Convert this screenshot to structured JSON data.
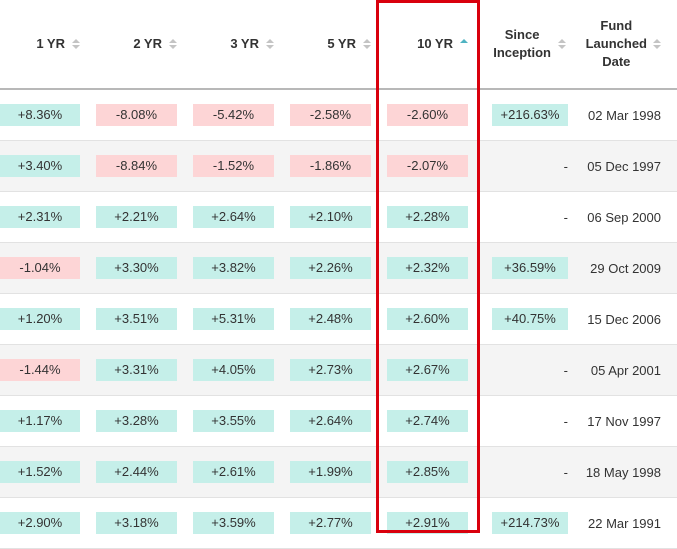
{
  "headers": [
    {
      "label": "1 YR",
      "sort": "none"
    },
    {
      "label": "2 YR",
      "sort": "none"
    },
    {
      "label": "3 YR",
      "sort": "none"
    },
    {
      "label": "5 YR",
      "sort": "none"
    },
    {
      "label": "10 YR",
      "sort": "ascending"
    },
    {
      "label_line1": "Since",
      "label_line2": "Inception",
      "sort": "none"
    },
    {
      "label_line1": "Fund",
      "label_line2": "Launched",
      "label_line3": "Date",
      "sort": "none"
    }
  ],
  "colors": {
    "positive_bg": "#c5efe9",
    "negative_bg": "#fdd5d6",
    "highlight_border": "#d9000d",
    "sort_active": "#4fb3c2"
  },
  "rows": [
    {
      "yr1": "+8.36%",
      "yr2": "-8.08%",
      "yr3": "-5.42%",
      "yr5": "-2.58%",
      "yr10": "-2.60%",
      "since": "+216.63%",
      "date": "02 Mar 1998"
    },
    {
      "yr1": "+3.40%",
      "yr2": "-8.84%",
      "yr3": "-1.52%",
      "yr5": "-1.86%",
      "yr10": "-2.07%",
      "since": "-",
      "date": "05 Dec 1997"
    },
    {
      "yr1": "+2.31%",
      "yr2": "+2.21%",
      "yr3": "+2.64%",
      "yr5": "+2.10%",
      "yr10": "+2.28%",
      "since": "-",
      "date": "06 Sep 2000"
    },
    {
      "yr1": "-1.04%",
      "yr2": "+3.30%",
      "yr3": "+3.82%",
      "yr5": "+2.26%",
      "yr10": "+2.32%",
      "since": "+36.59%",
      "date": "29 Oct 2009"
    },
    {
      "yr1": "+1.20%",
      "yr2": "+3.51%",
      "yr3": "+5.31%",
      "yr5": "+2.48%",
      "yr10": "+2.60%",
      "since": "+40.75%",
      "date": "15 Dec 2006"
    },
    {
      "yr1": "-1.44%",
      "yr2": "+3.31%",
      "yr3": "+4.05%",
      "yr5": "+2.73%",
      "yr10": "+2.67%",
      "since": "-",
      "date": "05 Apr 2001"
    },
    {
      "yr1": "+1.17%",
      "yr2": "+3.28%",
      "yr3": "+3.55%",
      "yr5": "+2.64%",
      "yr10": "+2.74%",
      "since": "-",
      "date": "17 Nov 1997"
    },
    {
      "yr1": "+1.52%",
      "yr2": "+2.44%",
      "yr3": "+2.61%",
      "yr5": "+1.99%",
      "yr10": "+2.85%",
      "since": "-",
      "date": "18 May 1998"
    },
    {
      "yr1": "+2.90%",
      "yr2": "+3.18%",
      "yr3": "+3.59%",
      "yr5": "+2.77%",
      "yr10": "+2.91%",
      "since": "+214.73%",
      "date": "22 Mar 1991"
    }
  ]
}
